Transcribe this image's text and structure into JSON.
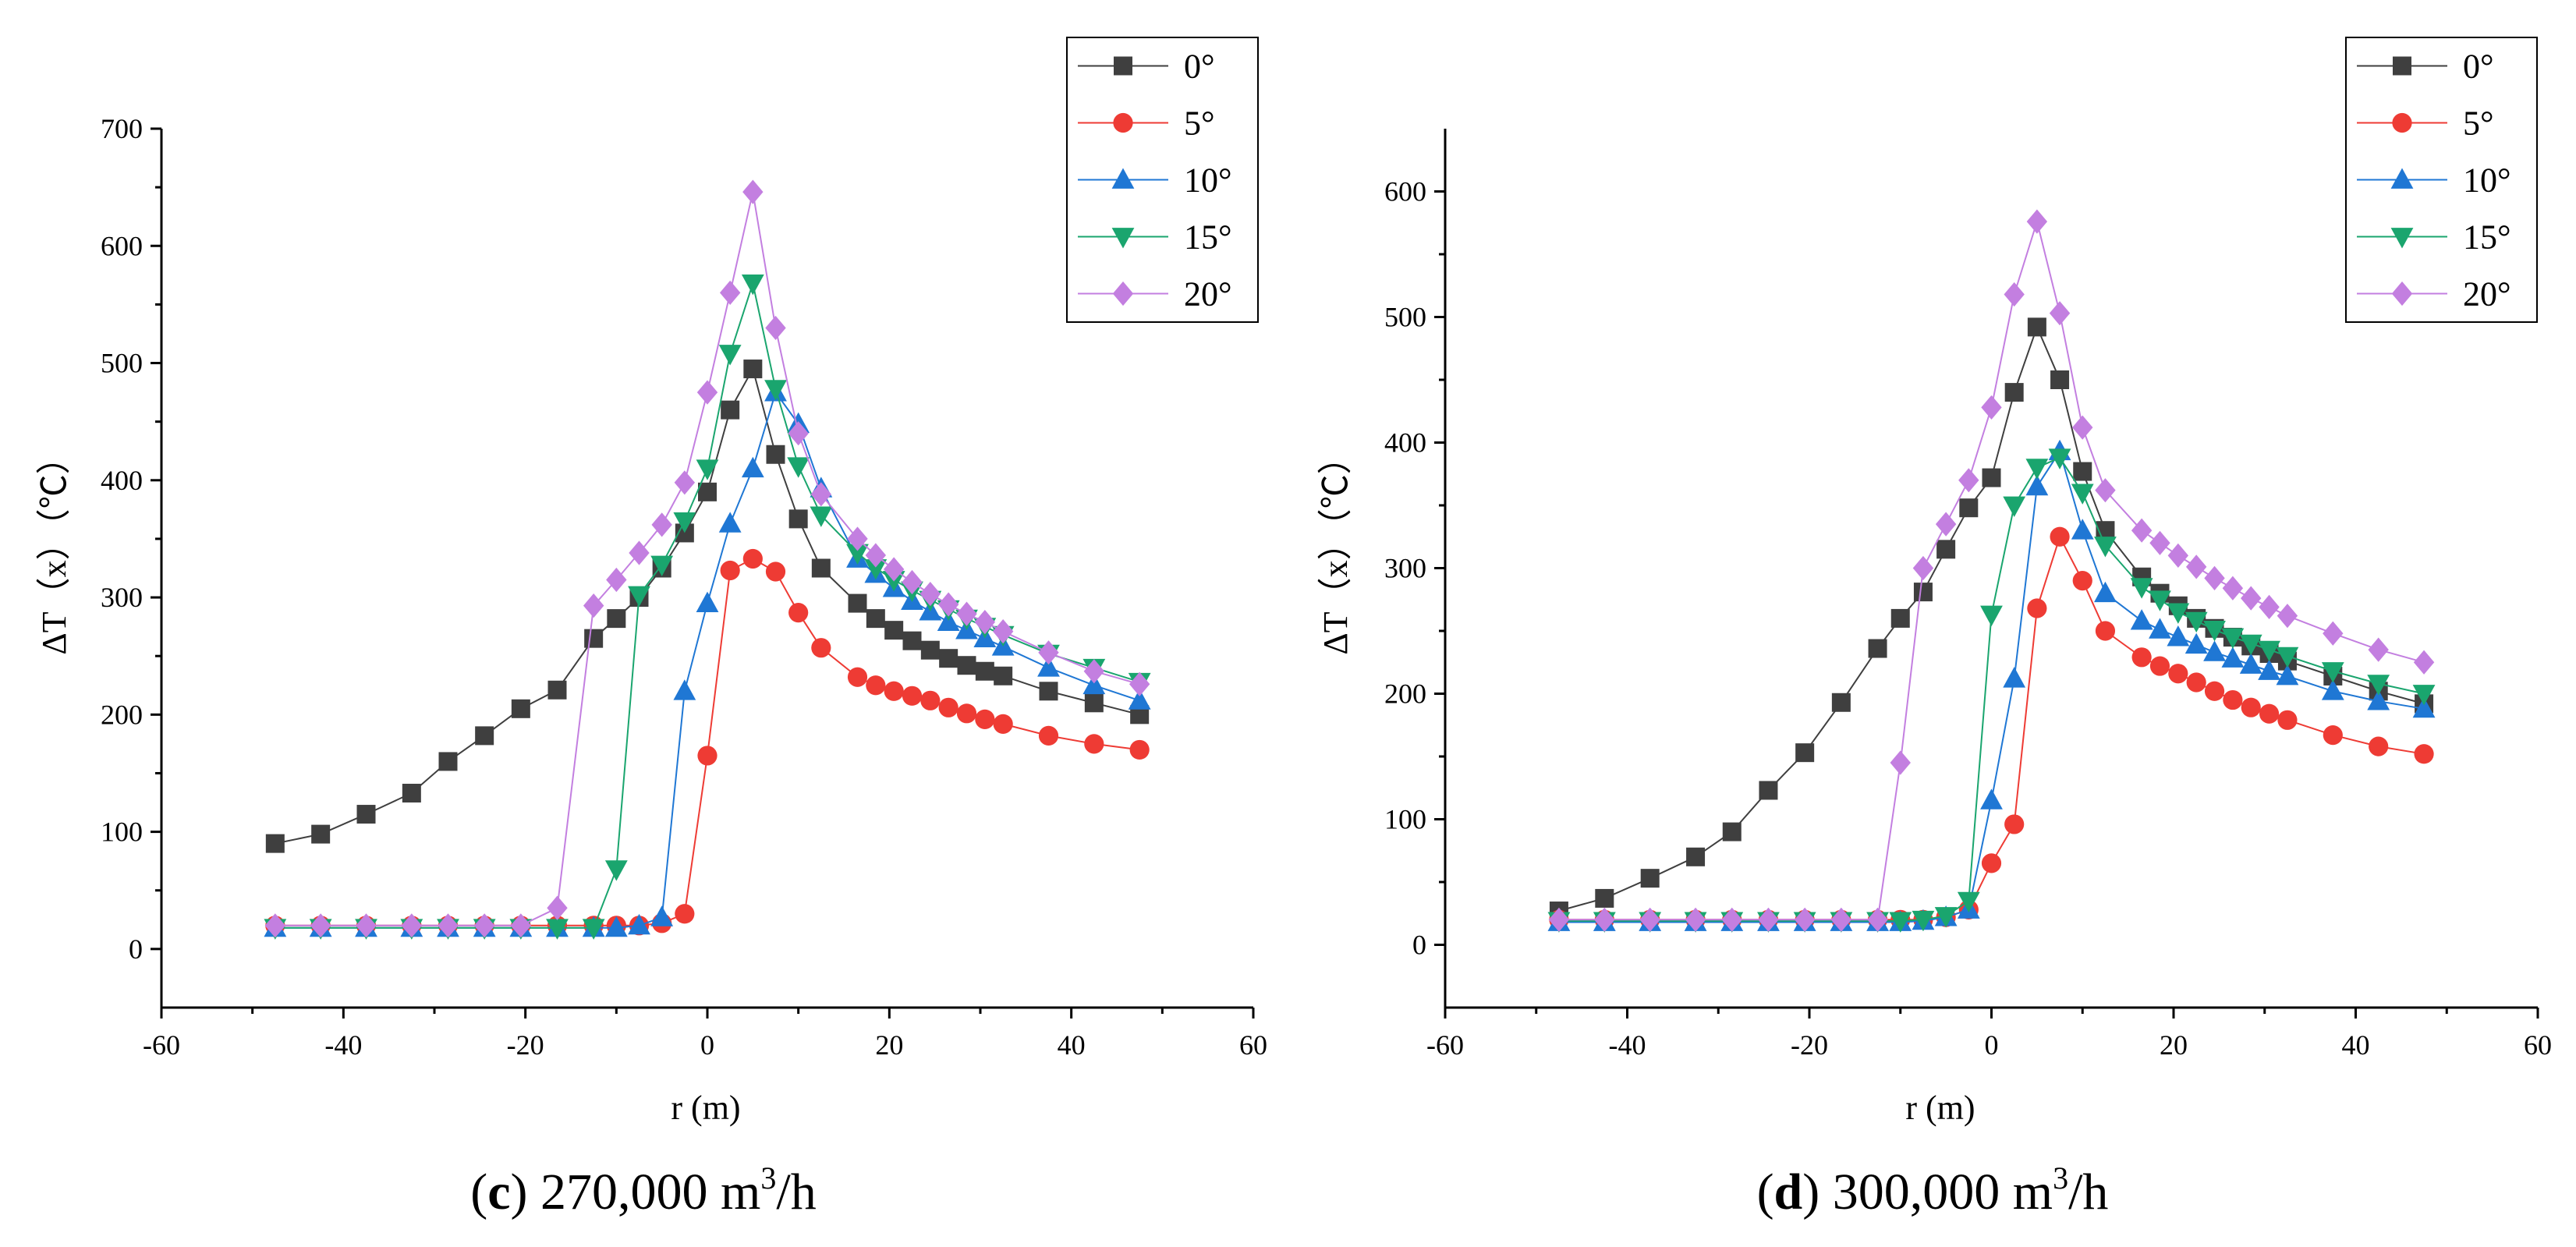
{
  "chart_data": [
    {
      "type": "line",
      "panel_letter": "c",
      "caption_text": "270,000 m",
      "caption_sup": "3",
      "caption_tail": "/h",
      "xlabel": "r (m)",
      "ylabel": "ΔT（x）（℃）",
      "xlim": [
        -60,
        60
      ],
      "ylim": [
        -50,
        700
      ],
      "xticks": [
        -60,
        -40,
        -20,
        0,
        20,
        40,
        60
      ],
      "yticks": [
        0,
        100,
        200,
        300,
        400,
        500,
        600,
        700
      ],
      "legend_position": "top-right",
      "series": [
        {
          "name": "0°",
          "color": "#3f3f3f",
          "marker": "square",
          "x": [
            -47.5,
            -42.5,
            -37.5,
            -32.5,
            -28.5,
            -24.5,
            -20.5,
            -16.5,
            -12.5,
            -10,
            -7.5,
            -5,
            -2.5,
            0,
            2.5,
            5,
            7.5,
            10,
            12.5,
            16.5,
            18.5,
            20.5,
            22.5,
            24.5,
            26.5,
            28.5,
            30.5,
            32.5,
            37.5,
            42.5,
            47.5
          ],
          "y": [
            90,
            98,
            115,
            133,
            160,
            182,
            205,
            221,
            265,
            282,
            300,
            325,
            355,
            390,
            460,
            495,
            422,
            367,
            325,
            295,
            282,
            272,
            263,
            255,
            248,
            242,
            237,
            233,
            220,
            210,
            200
          ]
        },
        {
          "name": "5°",
          "color": "#ee3b34",
          "marker": "circle",
          "x": [
            -47.5,
            -42.5,
            -37.5,
            -32.5,
            -28.5,
            -24.5,
            -20.5,
            -16.5,
            -12.5,
            -10,
            -7.5,
            -5,
            -2.5,
            0,
            2.5,
            5,
            7.5,
            10,
            12.5,
            16.5,
            18.5,
            20.5,
            22.5,
            24.5,
            26.5,
            28.5,
            30.5,
            32.5,
            37.5,
            42.5,
            47.5
          ],
          "y": [
            20,
            20,
            20,
            20,
            20,
            20,
            20,
            20,
            20,
            20,
            20,
            22,
            30,
            165,
            323,
            333,
            322,
            287,
            257,
            232,
            225,
            220,
            216,
            212,
            206,
            201,
            196,
            192,
            182,
            175,
            170
          ]
        },
        {
          "name": "10°",
          "color": "#1f77d4",
          "marker": "triangle-up",
          "x": [
            -47.5,
            -42.5,
            -37.5,
            -32.5,
            -28.5,
            -24.5,
            -20.5,
            -16.5,
            -12.5,
            -10,
            -7.5,
            -5,
            -2.5,
            0,
            2.5,
            5,
            7.5,
            10,
            12.5,
            16.5,
            18.5,
            20.5,
            22.5,
            24.5,
            26.5,
            28.5,
            30.5,
            32.5,
            37.5,
            42.5,
            47.5
          ],
          "y": [
            18,
            18,
            18,
            18,
            18,
            18,
            18,
            18,
            18,
            18,
            20,
            27,
            220,
            295,
            363,
            410,
            475,
            448,
            393,
            333,
            320,
            308,
            297,
            288,
            279,
            272,
            265,
            258,
            240,
            225,
            212
          ]
        },
        {
          "name": "15°",
          "color": "#1aa56e",
          "marker": "triangle-down",
          "x": [
            -47.5,
            -42.5,
            -37.5,
            -32.5,
            -28.5,
            -24.5,
            -20.5,
            -16.5,
            -12.5,
            -10,
            -7.5,
            -5,
            -2.5,
            0,
            2.5,
            5,
            7.5,
            10,
            12.5,
            16.5,
            18.5,
            20.5,
            22.5,
            24.5,
            26.5,
            28.5,
            30.5,
            32.5,
            37.5,
            42.5,
            47.5
          ],
          "y": [
            18,
            18,
            18,
            18,
            18,
            18,
            18,
            18,
            18,
            68,
            302,
            328,
            365,
            410,
            508,
            568,
            478,
            412,
            370,
            338,
            325,
            315,
            306,
            298,
            290,
            282,
            275,
            268,
            252,
            240,
            228
          ]
        },
        {
          "name": "20°",
          "color": "#c37fe0",
          "marker": "diamond",
          "x": [
            -47.5,
            -42.5,
            -37.5,
            -32.5,
            -28.5,
            -24.5,
            -20.5,
            -16.5,
            -12.5,
            -10,
            -7.5,
            -5,
            -2.5,
            0,
            2.5,
            5,
            7.5,
            10,
            12.5,
            16.5,
            18.5,
            20.5,
            22.5,
            24.5,
            26.5,
            28.5,
            30.5,
            32.5,
            37.5,
            42.5,
            47.5
          ],
          "y": [
            20,
            20,
            20,
            20,
            20,
            20,
            20,
            35,
            293,
            315,
            338,
            362,
            398,
            475,
            560,
            646,
            530,
            440,
            388,
            350,
            336,
            324,
            313,
            303,
            294,
            286,
            279,
            271,
            253,
            237,
            226
          ]
        }
      ]
    },
    {
      "type": "line",
      "panel_letter": "d",
      "caption_text": "300,000 m",
      "caption_sup": "3",
      "caption_tail": "/h",
      "xlabel": "r (m)",
      "ylabel": "ΔT（x）（℃）",
      "xlim": [
        -60,
        60
      ],
      "ylim": [
        -50,
        650
      ],
      "xticks": [
        -60,
        -40,
        -20,
        0,
        20,
        40,
        60
      ],
      "yticks": [
        0,
        100,
        200,
        300,
        400,
        500,
        600
      ],
      "legend_position": "top-right",
      "series": [
        {
          "name": "0°",
          "color": "#3f3f3f",
          "marker": "square",
          "x": [
            -47.5,
            -42.5,
            -37.5,
            -32.5,
            -28.5,
            -24.5,
            -20.5,
            -16.5,
            -12.5,
            -10,
            -7.5,
            -5,
            -2.5,
            0,
            2.5,
            5,
            7.5,
            10,
            12.5,
            16.5,
            18.5,
            20.5,
            22.5,
            24.5,
            26.5,
            28.5,
            30.5,
            32.5,
            37.5,
            42.5,
            47.5
          ],
          "y": [
            27,
            37,
            53,
            70,
            90,
            123,
            153,
            193,
            236,
            260,
            281,
            315,
            348,
            372,
            440,
            492,
            450,
            377,
            330,
            293,
            280,
            270,
            260,
            252,
            245,
            238,
            232,
            226,
            214,
            202,
            192
          ]
        },
        {
          "name": "5°",
          "color": "#ee3b34",
          "marker": "circle",
          "x": [
            -47.5,
            -42.5,
            -37.5,
            -32.5,
            -28.5,
            -24.5,
            -20.5,
            -16.5,
            -12.5,
            -10,
            -7.5,
            -5,
            -2.5,
            0,
            2.5,
            5,
            7.5,
            10,
            12.5,
            16.5,
            18.5,
            20.5,
            22.5,
            24.5,
            26.5,
            28.5,
            30.5,
            32.5,
            37.5,
            42.5,
            47.5
          ],
          "y": [
            20,
            20,
            20,
            20,
            20,
            20,
            20,
            20,
            20,
            20,
            20,
            22,
            28,
            65,
            96,
            268,
            325,
            290,
            250,
            229,
            222,
            216,
            209,
            202,
            195,
            189,
            184,
            179,
            167,
            158,
            152
          ]
        },
        {
          "name": "10°",
          "color": "#1f77d4",
          "marker": "triangle-up",
          "x": [
            -47.5,
            -42.5,
            -37.5,
            -32.5,
            -28.5,
            -24.5,
            -20.5,
            -16.5,
            -12.5,
            -10,
            -7.5,
            -5,
            -2.5,
            0,
            2.5,
            5,
            7.5,
            10,
            12.5,
            16.5,
            18.5,
            20.5,
            22.5,
            24.5,
            26.5,
            28.5,
            30.5,
            32.5,
            37.5,
            42.5,
            47.5
          ],
          "y": [
            18,
            18,
            18,
            18,
            18,
            18,
            18,
            18,
            18,
            18,
            19,
            22,
            28,
            115,
            212,
            365,
            393,
            330,
            280,
            258,
            251,
            245,
            239,
            233,
            228,
            223,
            218,
            214,
            202,
            194,
            188
          ]
        },
        {
          "name": "15°",
          "color": "#1aa56e",
          "marker": "triangle-down",
          "x": [
            -47.5,
            -42.5,
            -37.5,
            -32.5,
            -28.5,
            -24.5,
            -20.5,
            -16.5,
            -12.5,
            -10,
            -7.5,
            -5,
            -2.5,
            0,
            2.5,
            5,
            7.5,
            10,
            12.5,
            16.5,
            18.5,
            20.5,
            22.5,
            24.5,
            26.5,
            28.5,
            30.5,
            32.5,
            37.5,
            42.5,
            47.5
          ],
          "y": [
            19,
            19,
            19,
            19,
            19,
            19,
            19,
            19,
            19,
            19,
            20,
            23,
            35,
            263,
            350,
            380,
            388,
            360,
            318,
            285,
            275,
            265,
            258,
            251,
            245,
            240,
            235,
            230,
            218,
            208,
            200
          ]
        },
        {
          "name": "20°",
          "color": "#c37fe0",
          "marker": "diamond",
          "x": [
            -47.5,
            -42.5,
            -37.5,
            -32.5,
            -28.5,
            -24.5,
            -20.5,
            -16.5,
            -12.5,
            -10,
            -7.5,
            -5,
            -2.5,
            0,
            2.5,
            5,
            7.5,
            10,
            12.5,
            16.5,
            18.5,
            20.5,
            22.5,
            24.5,
            26.5,
            28.5,
            30.5,
            32.5,
            37.5,
            42.5,
            47.5
          ],
          "y": [
            20,
            20,
            20,
            20,
            20,
            20,
            20,
            20,
            20,
            145,
            300,
            335,
            370,
            428,
            518,
            576,
            503,
            412,
            362,
            330,
            320,
            310,
            301,
            292,
            284,
            276,
            269,
            262,
            248,
            235,
            225
          ]
        }
      ]
    }
  ]
}
